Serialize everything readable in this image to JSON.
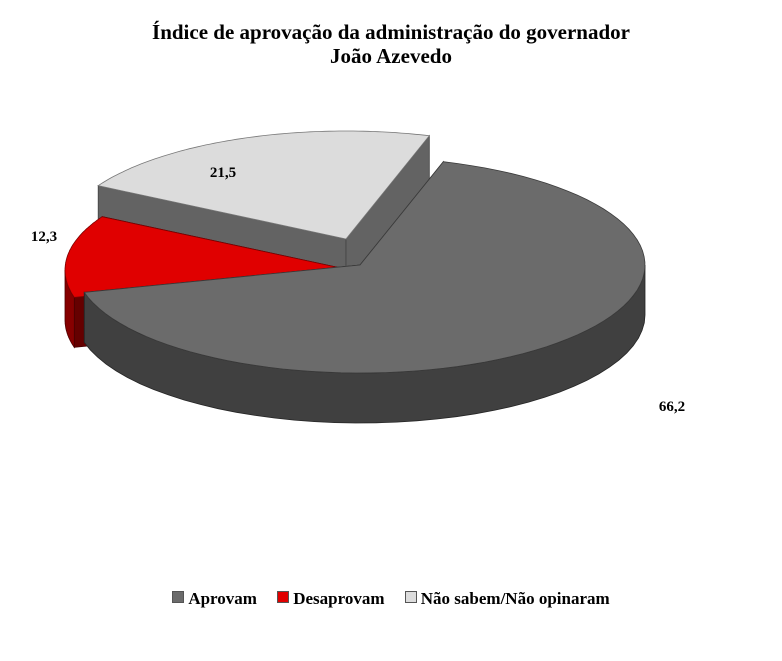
{
  "chart_data": {
    "type": "pie",
    "title": "Índice de aprovação da administração do governador",
    "subtitle": "João Azevedo",
    "categories": [
      "Aprovam",
      "Desaprovam",
      "Não sabem/Não opinaram"
    ],
    "values": [
      66.2,
      12.3,
      21.5
    ],
    "data_labels": [
      "66,2",
      "12,3",
      "21,5"
    ],
    "colors": [
      "#6b6b6b",
      "#e00000",
      "#dcdcdc"
    ],
    "three_d": true,
    "exploded": true,
    "legend_position": "bottom"
  }
}
